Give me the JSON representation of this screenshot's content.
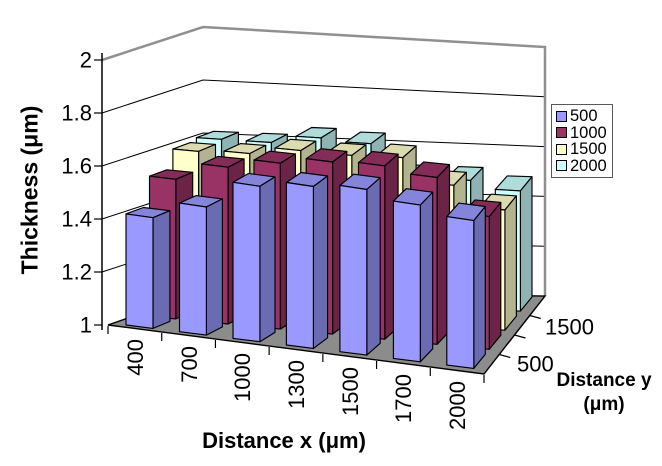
{
  "chart_data": {
    "type": "bar",
    "projection": "3d-column",
    "title": "",
    "categories": [
      "400",
      "700",
      "1000",
      "1300",
      "1500",
      "1700",
      "2000"
    ],
    "series": [
      {
        "name": "500",
        "color": "#9999FF",
        "values": [
          1.42,
          1.49,
          1.6,
          1.63,
          1.65,
          1.62,
          1.59
        ]
      },
      {
        "name": "1000",
        "color": "#993366",
        "values": [
          1.53,
          1.6,
          1.64,
          1.67,
          1.68,
          1.66,
          1.53
        ]
      },
      {
        "name": "1500",
        "color": "#FFFFCC",
        "values": [
          1.6,
          1.61,
          1.64,
          1.64,
          1.65,
          1.56,
          1.48
        ]
      },
      {
        "name": "2000",
        "color": "#CCFFFF",
        "values": [
          1.61,
          1.61,
          1.64,
          1.63,
          1.51,
          1.51,
          1.48
        ]
      }
    ],
    "value_axis": {
      "title": "Thickness (μm)",
      "min": 1,
      "max": 2,
      "step": 0.2,
      "tick_labels": [
        "1",
        "1.2",
        "1.4",
        "1.6",
        "1.8",
        "2"
      ]
    },
    "category_axis": {
      "title": "Distance x (μm)"
    },
    "depth_axis": {
      "title_line1": "Distance y",
      "title_line2": "(μm)",
      "tick_labels": [
        "500",
        "1500"
      ]
    },
    "legend": {
      "position": "right",
      "entries": [
        "500",
        "1000",
        "1500",
        "2000"
      ]
    },
    "grid": true,
    "colors": {
      "floor": "#8C8C8C",
      "wall": "#FFFFFF",
      "gridline": "#000000",
      "wall_border": "#909090",
      "bar_outline": "#000000"
    }
  }
}
